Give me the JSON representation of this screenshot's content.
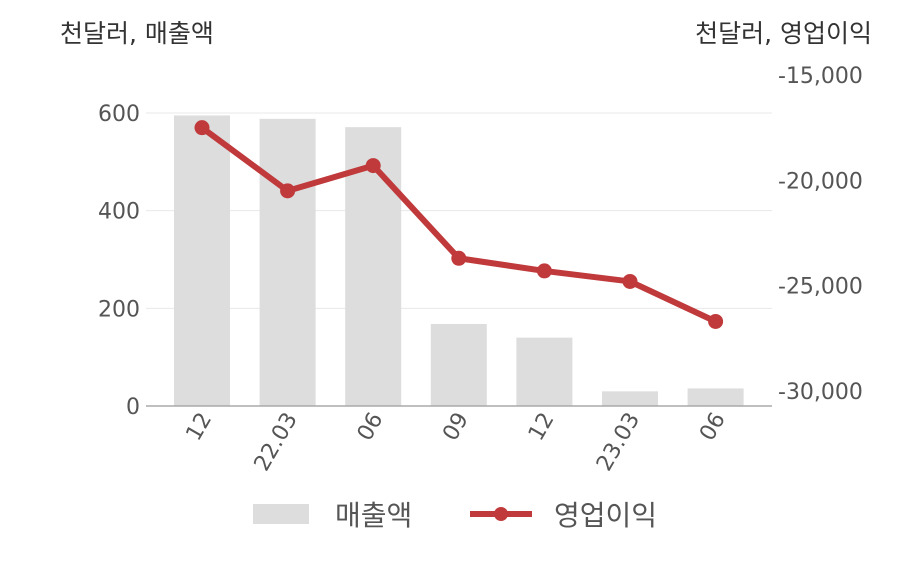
{
  "chart_data": {
    "type": "bar+line",
    "categories": [
      "12",
      "22.03",
      "06",
      "09",
      "12",
      "23.03",
      "06"
    ],
    "left_axis": {
      "unit_label": "천달러, 매출액",
      "ticks": [
        "600",
        "400",
        "200",
        "0"
      ],
      "ylim": [
        0,
        600
      ]
    },
    "right_axis": {
      "unit_label": "천달러, 영업이익",
      "ticks": [
        "-15,000",
        "-20,000",
        "-25,000",
        "-30,000"
      ],
      "ylim": [
        -30000,
        -15000
      ]
    },
    "series": [
      {
        "name": "매출액",
        "type": "bar",
        "axis": "left",
        "color": "#dddddd",
        "values": [
          595,
          588,
          571,
          168,
          140,
          30,
          36
        ]
      },
      {
        "name": "영업이익",
        "type": "line",
        "axis": "right",
        "color": "#c0393b",
        "values": [
          -17500,
          -20500,
          -19300,
          -23700,
          -24300,
          -24800,
          -26700
        ]
      }
    ],
    "grid": true,
    "legend_position": "bottom"
  }
}
